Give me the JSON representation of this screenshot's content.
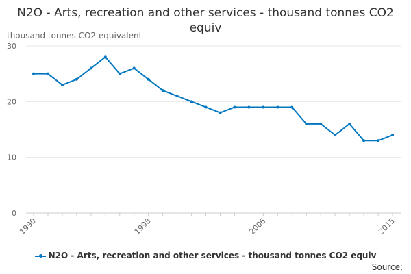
{
  "chart_data": {
    "type": "line",
    "title": "N2O - Arts, recreation and other services - thousand tonnes CO2 equiv",
    "ylabel": "thousand tonnes CO2 equivalent",
    "xlabel": "",
    "x": [
      1990,
      1991,
      1992,
      1993,
      1994,
      1995,
      1996,
      1997,
      1998,
      1999,
      2000,
      2001,
      2002,
      2003,
      2004,
      2005,
      2006,
      2007,
      2008,
      2009,
      2010,
      2011,
      2012,
      2013,
      2014,
      2015
    ],
    "series": [
      {
        "name": "N2O - Arts, recreation and other services - thousand tonnes CO2 equiv",
        "values": [
          25,
          25,
          23,
          24,
          26,
          28,
          25,
          26,
          24,
          22,
          21,
          20,
          19,
          18,
          19,
          19,
          19,
          19,
          19,
          16,
          16,
          14,
          16,
          13,
          13,
          14
        ]
      }
    ],
    "ylim": [
      0,
      30
    ],
    "yticks": [
      0,
      10,
      20,
      30
    ],
    "xticks": [
      1990,
      1998,
      2006,
      2015
    ],
    "grid": true,
    "legend": "bottom",
    "color": "#0077c0"
  },
  "source_label": "Source:"
}
